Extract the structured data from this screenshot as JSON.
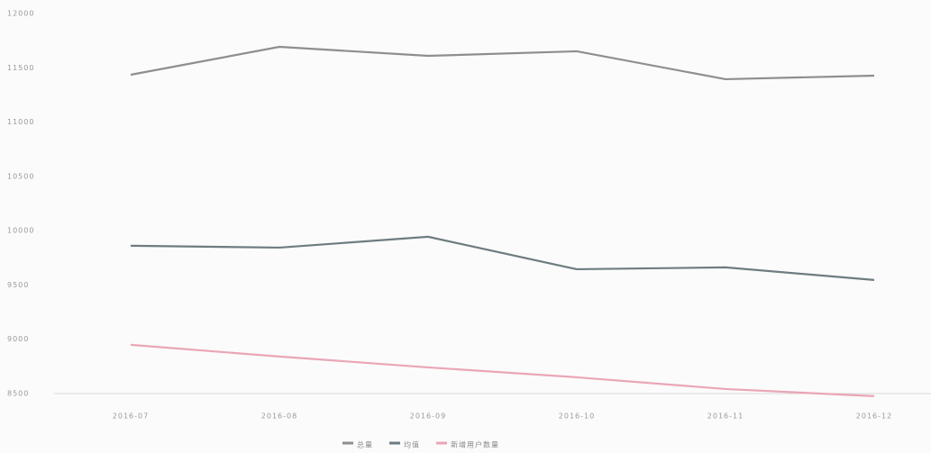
{
  "chart_data": {
    "type": "line",
    "categories": [
      "2016-07",
      "2016-08",
      "2016-09",
      "2016-10",
      "2016-11",
      "2016-12"
    ],
    "series": [
      {
        "name": "总量",
        "color": "#8e8e8e",
        "values": [
          11436,
          11693,
          11610,
          11652,
          11395,
          11428
        ]
      },
      {
        "name": "均值",
        "color": "#6e7c80",
        "values": [
          9861,
          9844,
          9944,
          9645,
          9662,
          9546
        ]
      },
      {
        "name": "新增用户数量",
        "color": "#eaa6b6",
        "values": [
          8949,
          8841,
          8741,
          8650,
          8542,
          8476
        ]
      }
    ],
    "ylim": [
      8500,
      12000
    ],
    "yticks": [
      8500,
      9000,
      9500,
      10000,
      10500,
      11000,
      11500,
      12000
    ],
    "grid": false,
    "legend": "bottom"
  }
}
